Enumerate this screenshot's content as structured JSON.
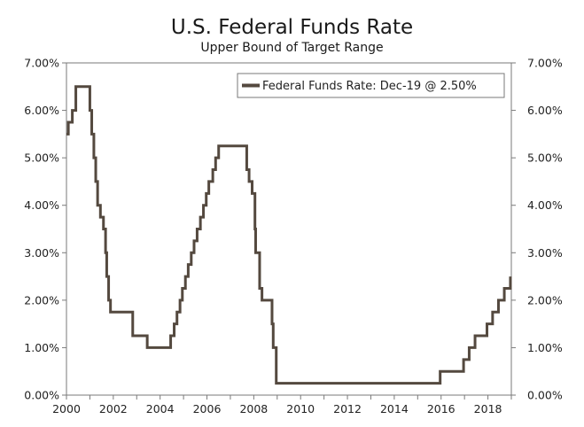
{
  "chart_data": {
    "type": "line",
    "title": "U.S. Federal Funds Rate",
    "subtitle": "Upper Bound of Target Range",
    "xlabel": "",
    "ylabel": "",
    "xlim": [
      2000,
      2019.0
    ],
    "ylim": [
      0,
      7
    ],
    "x_ticks": [
      "2000",
      "2002",
      "2004",
      "2006",
      "2008",
      "2010",
      "2012",
      "2014",
      "2016",
      "2018"
    ],
    "y_ticks": [
      "0.00%",
      "1.00%",
      "2.00%",
      "3.00%",
      "4.00%",
      "5.00%",
      "6.00%",
      "7.00%"
    ],
    "grid": false,
    "legend_position": "top-right",
    "series": [
      {
        "name": "Federal Funds Rate: Dec-19 @ 2.50%",
        "color": "#54493f",
        "points": [
          [
            2000.0,
            5.5
          ],
          [
            2000.08,
            5.75
          ],
          [
            2000.25,
            6.0
          ],
          [
            2000.4,
            6.5
          ],
          [
            2001.0,
            6.0
          ],
          [
            2001.08,
            5.5
          ],
          [
            2001.17,
            5.0
          ],
          [
            2001.25,
            4.5
          ],
          [
            2001.33,
            4.0
          ],
          [
            2001.45,
            3.75
          ],
          [
            2001.58,
            3.5
          ],
          [
            2001.67,
            3.0
          ],
          [
            2001.72,
            2.5
          ],
          [
            2001.8,
            2.0
          ],
          [
            2001.88,
            1.75
          ],
          [
            2002.83,
            1.25
          ],
          [
            2003.45,
            1.0
          ],
          [
            2004.45,
            1.25
          ],
          [
            2004.6,
            1.5
          ],
          [
            2004.72,
            1.75
          ],
          [
            2004.85,
            2.0
          ],
          [
            2004.95,
            2.25
          ],
          [
            2005.08,
            2.5
          ],
          [
            2005.2,
            2.75
          ],
          [
            2005.33,
            3.0
          ],
          [
            2005.45,
            3.25
          ],
          [
            2005.58,
            3.5
          ],
          [
            2005.72,
            3.75
          ],
          [
            2005.85,
            4.0
          ],
          [
            2005.97,
            4.25
          ],
          [
            2006.08,
            4.5
          ],
          [
            2006.25,
            4.75
          ],
          [
            2006.37,
            5.0
          ],
          [
            2006.5,
            5.25
          ],
          [
            2007.7,
            4.75
          ],
          [
            2007.8,
            4.5
          ],
          [
            2007.93,
            4.25
          ],
          [
            2008.05,
            3.5
          ],
          [
            2008.08,
            3.0
          ],
          [
            2008.25,
            2.25
          ],
          [
            2008.35,
            2.0
          ],
          [
            2008.78,
            1.5
          ],
          [
            2008.83,
            1.0
          ],
          [
            2008.96,
            0.25
          ],
          [
            2015.96,
            0.5
          ],
          [
            2016.96,
            0.75
          ],
          [
            2017.2,
            1.0
          ],
          [
            2017.45,
            1.25
          ],
          [
            2017.96,
            1.5
          ],
          [
            2018.2,
            1.75
          ],
          [
            2018.45,
            2.0
          ],
          [
            2018.7,
            2.25
          ],
          [
            2018.96,
            2.5
          ]
        ]
      }
    ]
  }
}
